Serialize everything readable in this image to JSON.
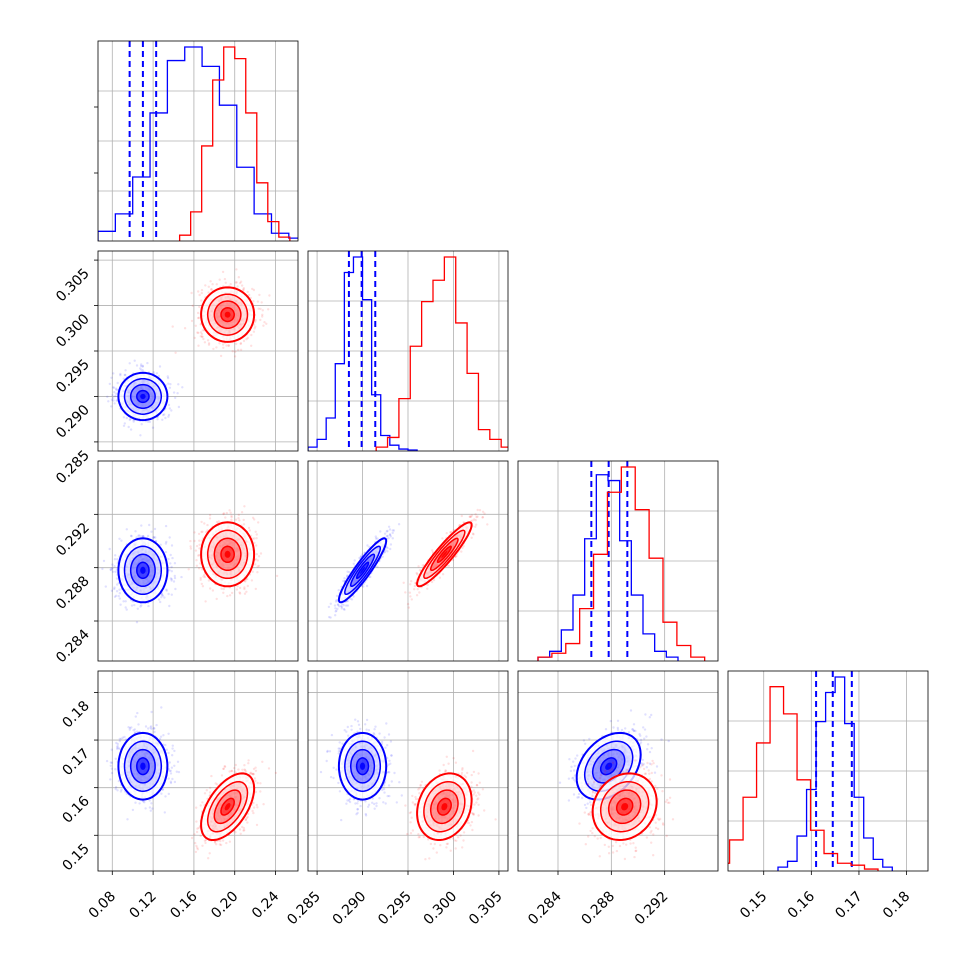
{
  "chart_data": {
    "type": "corner",
    "grid": true,
    "colors": {
      "series_a": "#0000ff",
      "series_b": "#ff0000"
    },
    "parameters": [
      {
        "range": [
          0.066,
          0.262
        ],
        "ticks": [
          0.08,
          0.12,
          0.16,
          0.2,
          0.24
        ],
        "tick_labels": [
          "0.08",
          "0.12",
          "0.16",
          "0.20",
          "0.24"
        ]
      },
      {
        "range": [
          0.284,
          0.306
        ],
        "ticks": [
          0.285,
          0.29,
          0.295,
          0.3,
          0.305
        ],
        "tick_labels": [
          "0.285",
          "0.290",
          "0.295",
          "0.300",
          "0.305"
        ]
      },
      {
        "range": [
          0.281,
          0.296
        ],
        "ticks": [
          0.284,
          0.288,
          0.292
        ],
        "tick_labels": [
          "0.284",
          "0.288",
          "0.292"
        ]
      },
      {
        "range": [
          0.1425,
          0.1845
        ],
        "ticks": [
          0.15,
          0.16,
          0.17,
          0.18
        ],
        "tick_labels": [
          "0.15",
          "0.16",
          "0.17",
          "0.18"
        ]
      }
    ],
    "series": [
      {
        "color": "#0000ff",
        "mean": [
          0.11,
          0.29,
          0.2878,
          0.1645
        ],
        "sd": [
          0.012,
          0.0013,
          0.0012,
          0.0035
        ],
        "corr": [
          [
            1,
            0,
            0,
            0
          ],
          [
            0,
            1,
            0.92,
            0
          ],
          [
            0,
            0.92,
            1,
            0.35
          ],
          [
            0,
            0,
            0.35,
            1
          ]
        ],
        "quantiles": [
          [
            0.097,
            0.11,
            0.123
          ],
          [
            0.2885,
            0.2899,
            0.2914
          ],
          [
            0.2865,
            0.2878,
            0.2892
          ],
          [
            0.161,
            0.1645,
            0.1685
          ]
        ],
        "histograms": [
          {
            "edges": [
              0.066,
              0.27
            ],
            "counts": [
              0.05,
              0.14,
              0.33,
              0.66,
              0.93,
              1.0,
              0.9,
              0.7,
              0.38,
              0.14,
              0.04,
              0.015
            ]
          },
          {
            "edges": [
              0.284,
              0.296
            ],
            "counts": [
              0.02,
              0.06,
              0.17,
              0.45,
              0.92,
              1.0,
              0.78,
              0.29,
              0.08,
              0.03,
              0.01,
              0.005
            ]
          },
          {
            "edges": [
              0.2825,
              0.293
            ],
            "counts": [
              0.02,
              0.05,
              0.16,
              0.34,
              0.63,
              0.96,
              0.93,
              0.62,
              0.34,
              0.14,
              0.05,
              0.02
            ]
          },
          {
            "edges": [
              0.153,
              0.177
            ],
            "counts": [
              0.02,
              0.05,
              0.18,
              0.42,
              0.77,
              0.92,
              1.0,
              0.76,
              0.38,
              0.17,
              0.06,
              0.02
            ]
          }
        ]
      },
      {
        "color": "#ff0000",
        "mean": [
          0.193,
          0.299,
          0.289,
          0.156
        ],
        "sd": [
          0.013,
          0.0015,
          0.0012,
          0.0035
        ],
        "corr": [
          [
            1,
            0,
            0,
            0.55
          ],
          [
            0,
            1,
            0.92,
            0.2
          ],
          [
            0,
            0.92,
            1,
            0.15
          ],
          [
            0.55,
            0.2,
            0.15,
            1
          ]
        ],
        "histograms": [
          {
            "edges": [
              0.146,
              0.254
            ],
            "counts": [
              0.03,
              0.15,
              0.49,
              0.83,
              1.0,
              0.94,
              0.66,
              0.3,
              0.1,
              0.02
            ]
          },
          {
            "edges": [
              0.2915,
              0.3065
            ],
            "counts": [
              0.02,
              0.07,
              0.27,
              0.54,
              0.77,
              0.88,
              1.0,
              0.66,
              0.4,
              0.11,
              0.06,
              0.02
            ]
          },
          {
            "edges": [
              0.2825,
              0.295
            ],
            "counts": [
              0.02,
              0.04,
              0.09,
              0.27,
              0.55,
              0.87,
              1.0,
              0.78,
              0.53,
              0.2,
              0.08,
              0.02
            ]
          },
          {
            "edges": [
              0.14,
              0.174
            ],
            "counts": [
              0.04,
              0.16,
              0.38,
              0.66,
              0.95,
              0.81,
              0.47,
              0.21,
              0.09,
              0.04,
              0.03,
              0.01
            ]
          }
        ]
      }
    ]
  }
}
